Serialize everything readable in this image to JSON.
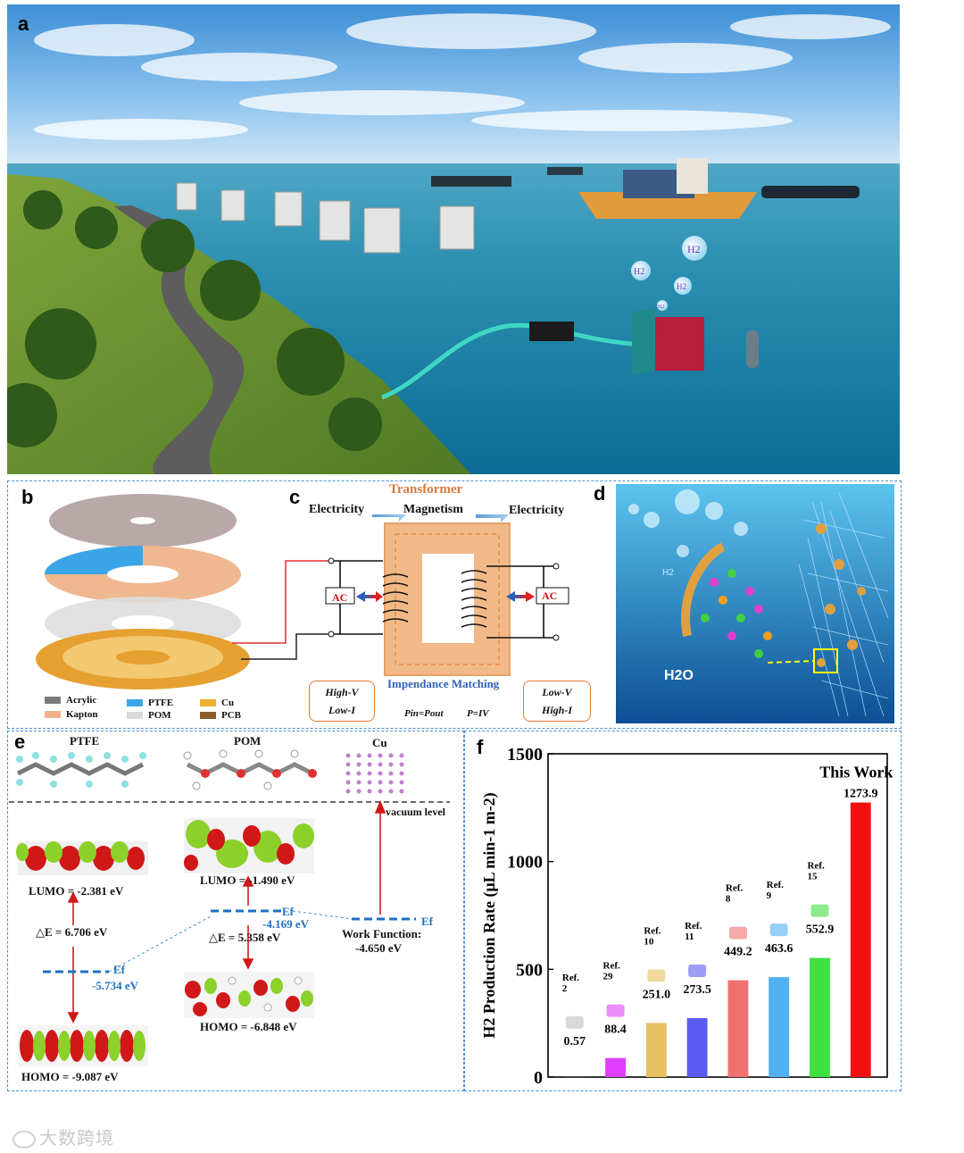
{
  "panels": {
    "a": "a",
    "b": "b",
    "c": "c",
    "d": "d",
    "e": "e",
    "f": "f"
  },
  "panel_a": {
    "h2_bubbles": [
      "H2",
      "H2",
      "H2",
      "H2"
    ]
  },
  "panel_b": {
    "legend": [
      {
        "label": "Acrylic",
        "color": "#7a7a7a"
      },
      {
        "label": "PTFE",
        "color": "#3aa6e8"
      },
      {
        "label": "Cu",
        "color": "#f0b030"
      },
      {
        "label": "Kapton",
        "color": "#f0b08a"
      },
      {
        "label": "POM",
        "color": "#d9d9d9"
      },
      {
        "label": "PCB",
        "color": "#8b5a2b"
      }
    ]
  },
  "panel_c": {
    "title": "Transformer",
    "flow": [
      "Electricity",
      "Magnetism",
      "Electricity"
    ],
    "ac_left": "AC",
    "ac_right": "AC",
    "impedance": "Impendance Matching",
    "left_box": [
      "High-V",
      "Low-I"
    ],
    "right_box": [
      "Low-V",
      "High-I"
    ],
    "eq_left": "Pin=Pout",
    "eq_right": "P=IV"
  },
  "panel_d": {
    "h2o": "H2O",
    "h2": "H2"
  },
  "panel_e": {
    "molecules": [
      "PTFE",
      "POM",
      "Cu"
    ],
    "vacuum": "vacuum level",
    "ptfe_lumo": "LUMO = -2.381 eV",
    "ptfe_gap": "△E = 6.706 eV",
    "ptfe_ef_label": "Ef",
    "ptfe_ef": "-5.734 eV",
    "ptfe_homo": "HOMO = -9.087 eV",
    "pom_lumo": "LUMO = -1.490 eV",
    "pom_ef_label": "Ef",
    "pom_ef": "-4.169 eV",
    "pom_gap": "△E = 5.358 eV",
    "pom_homo": "HOMO = -6.848 eV",
    "cu_ef_label": "Ef",
    "cu_wf_label": "Work Function:",
    "cu_wf": "-4.650 eV"
  },
  "chart_data": {
    "type": "bar",
    "ylabel": "H2 Production Rate (μL min-1 m-2)",
    "ylim": [
      0,
      1500
    ],
    "yticks": [
      "0",
      "500",
      "1000",
      "1500"
    ],
    "categories": [
      "Ref. 2",
      "Ref. 29",
      "Ref. 10",
      "Ref. 11",
      "Ref. 8",
      "Ref. 9",
      "Ref. 15",
      "This Work"
    ],
    "values": [
      0.57,
      88.4,
      251.0,
      273.5,
      449.2,
      463.6,
      552.9,
      1273.9
    ],
    "value_labels": [
      "0.57",
      "88.4",
      "251.0",
      "273.5",
      "449.2",
      "463.6",
      "552.9",
      "1273.9"
    ],
    "ref_lines": [
      [
        "Ref.",
        "2"
      ],
      [
        "Ref.",
        "29"
      ],
      [
        "Ref.",
        "10"
      ],
      [
        "Ref.",
        "11"
      ],
      [
        "Ref.",
        "8"
      ],
      [
        "Ref.",
        "9"
      ],
      [
        "Ref.",
        "15"
      ]
    ],
    "annotation": "This Work",
    "colors": [
      "#c0c0c0",
      "#e040fb",
      "#e8c060",
      "#5a5af0",
      "#f07070",
      "#50b0f0",
      "#40e040",
      "#f01010"
    ]
  },
  "watermark": "大数跨境"
}
